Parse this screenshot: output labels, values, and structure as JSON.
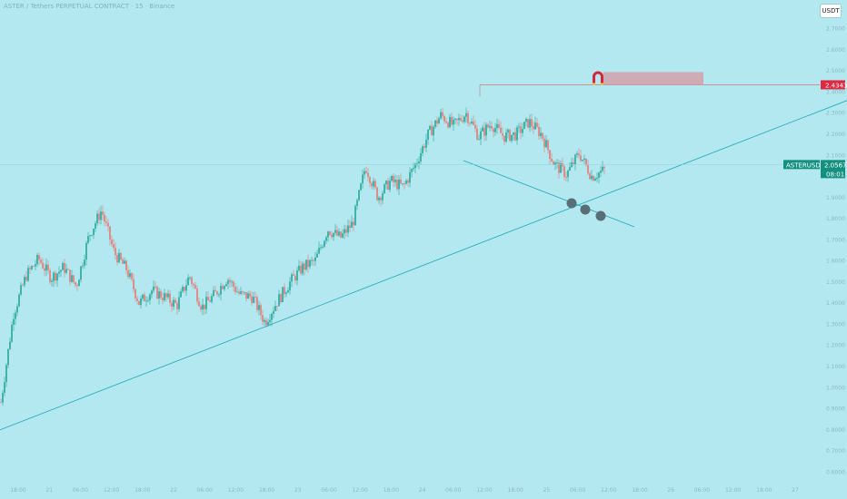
{
  "header": {
    "title": "ASTER / Tethers PERPETUAL CONTRACT · 15 · Binance",
    "unit_button": "USDT"
  },
  "colors": {
    "background": "#b4e8f0",
    "candle_up": "#26a69a",
    "candle_down": "#e07a72",
    "trendline": "#1aa8b8",
    "resistance_line": "#d3747a",
    "zone_fill": "#d4a0a8",
    "resistance_tag": "#e02840",
    "price_tag": "#14907f",
    "marker": "#5a6e78"
  },
  "chart_data": {
    "type": "candlestick",
    "title": "ASTER / Tethers PERPETUAL CONTRACT · 15 · Binance",
    "y_ticks": [
      "2.7000",
      "2.6000",
      "2.5000",
      "2.4000",
      "2.3000",
      "2.2000",
      "2.1000",
      "2.0000",
      "1.9000",
      "1.8000",
      "1.7000",
      "1.6000",
      "1.5000",
      "1.4000",
      "1.3000",
      "1.2000",
      "1.1000",
      "1.0000",
      "0.9000",
      "0.8000",
      "0.7000",
      "0.6000"
    ],
    "ylim": [
      0.58,
      2.75
    ],
    "x_ticks": [
      "18:00",
      "21",
      "06:00",
      "12:00",
      "18:00",
      "22",
      "06:00",
      "12:00",
      "18:00",
      "23",
      "06:00",
      "12:00",
      "18:00",
      "24",
      "06:00",
      "12:00",
      "18:00",
      "25",
      "06:00",
      "12:00",
      "18:00",
      "26",
      "06:00",
      "12:00",
      "18:00",
      "27"
    ],
    "price_path": [
      [
        0,
        0.93
      ],
      [
        2,
        1.35
      ],
      [
        4,
        1.53
      ],
      [
        6,
        1.61
      ],
      [
        8,
        1.52
      ],
      [
        10,
        1.57
      ],
      [
        12,
        1.48
      ],
      [
        14,
        1.72
      ],
      [
        16,
        1.84
      ],
      [
        18,
        1.64
      ],
      [
        20,
        1.56
      ],
      [
        22,
        1.4
      ],
      [
        24,
        1.46
      ],
      [
        26,
        1.43
      ],
      [
        28,
        1.39
      ],
      [
        30,
        1.53
      ],
      [
        32,
        1.38
      ],
      [
        34,
        1.44
      ],
      [
        36,
        1.52
      ],
      [
        38,
        1.44
      ],
      [
        40,
        1.43
      ],
      [
        42,
        1.31
      ],
      [
        44,
        1.41
      ],
      [
        46,
        1.5
      ],
      [
        48,
        1.57
      ],
      [
        50,
        1.6
      ],
      [
        52,
        1.75
      ],
      [
        54,
        1.71
      ],
      [
        56,
        1.78
      ],
      [
        58,
        2.05
      ],
      [
        60,
        1.9
      ],
      [
        62,
        1.98
      ],
      [
        64,
        1.95
      ],
      [
        66,
        2.06
      ],
      [
        68,
        2.2
      ],
      [
        70,
        2.29
      ],
      [
        72,
        2.24
      ],
      [
        74,
        2.3
      ],
      [
        76,
        2.19
      ],
      [
        78,
        2.25
      ],
      [
        80,
        2.19
      ],
      [
        82,
        2.2
      ],
      [
        84,
        2.26
      ],
      [
        86,
        2.2
      ],
      [
        88,
        2.06
      ],
      [
        90,
        2.01
      ],
      [
        92,
        2.11
      ],
      [
        94,
        2.0
      ],
      [
        96,
        2.03
      ]
    ],
    "resistance_level": "2.4343",
    "current_price": "2.0567",
    "countdown": "08:01",
    "symbol": "ASTERUSDT.P",
    "trendline_points": [
      [
        0,
        0.8
      ],
      [
        932,
        2.36
      ]
    ],
    "grid": false
  }
}
